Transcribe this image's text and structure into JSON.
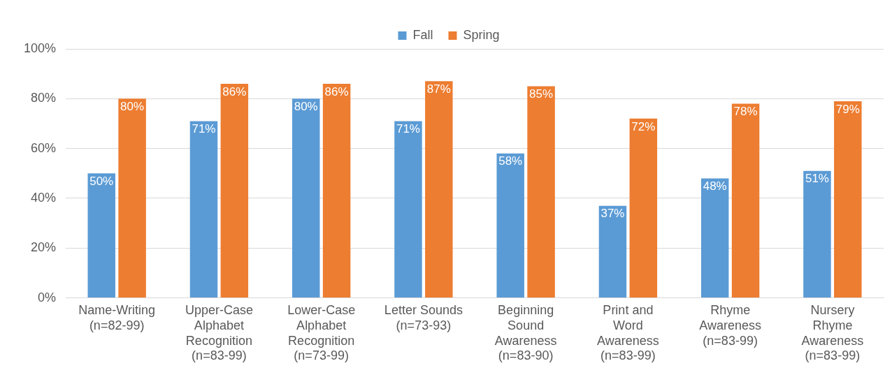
{
  "chart_data": {
    "type": "bar",
    "categories": [
      "Name-Writing\n(n=82-99)",
      "Upper-Case\nAlphabet\nRecognition\n(n=83-99)",
      "Lower-Case\nAlphabet\nRecognition\n(n=73-99)",
      "Letter Sounds\n(n=73-93)",
      "Beginning\nSound\nAwareness\n(n=83-90)",
      "Print and\nWord\nAwareness\n(n=83-99)",
      "Rhyme\nAwareness\n(n=83-99)",
      "Nursery\nRhyme\nAwareness\n(n=83-99)"
    ],
    "series": [
      {
        "name": "Fall",
        "color": "#5b9bd5",
        "values": [
          50,
          71,
          80,
          71,
          58,
          37,
          48,
          51
        ],
        "value_labels": [
          "50%",
          "71%",
          "80%",
          "71%",
          "58%",
          "37%",
          "48%",
          "51%"
        ]
      },
      {
        "name": "Spring",
        "color": "#ed7d31",
        "values": [
          80,
          86,
          86,
          87,
          85,
          72,
          78,
          79
        ],
        "value_labels": [
          "80%",
          "86%",
          "86%",
          "87%",
          "85%",
          "72%",
          "78%",
          "79%"
        ]
      }
    ],
    "ylim": [
      0,
      100
    ],
    "yticks": [
      {
        "value": 0,
        "label": "0%"
      },
      {
        "value": 20,
        "label": "20%"
      },
      {
        "value": 40,
        "label": "40%"
      },
      {
        "value": 60,
        "label": "60%"
      },
      {
        "value": 80,
        "label": "80%"
      },
      {
        "value": 100,
        "label": "100%"
      }
    ],
    "grid": "y",
    "legend": "top"
  }
}
